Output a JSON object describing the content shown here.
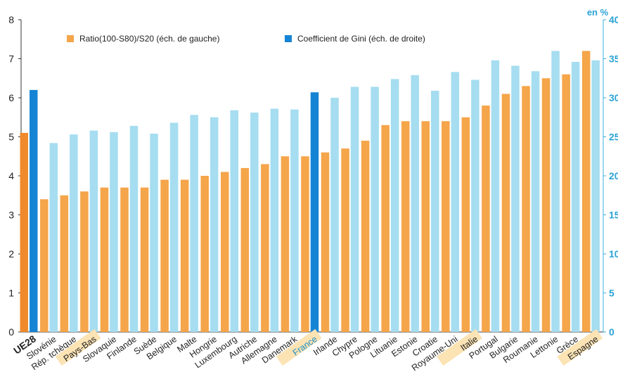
{
  "chart_data": {
    "type": "bar",
    "categories": [
      "UE28",
      "Slovénie",
      "Rép. tchèque",
      "Pays-Bas",
      "Slovaquie",
      "Finlande",
      "Suède",
      "Belgique",
      "Malte",
      "Hongrie",
      "Luxembourg",
      "Autriche",
      "Allemagne",
      "Danemark",
      "France",
      "Irlande",
      "Chypre",
      "Pologne",
      "Lituanie",
      "Estonie",
      "Croatie",
      "Royaume-Uni",
      "Italie",
      "Portugal",
      "Bulgarie",
      "Roumanie",
      "Lettonie",
      "Grèce",
      "Espagne"
    ],
    "highlighted_categories": [
      "UE28",
      "Pays-Bas",
      "France",
      "Italie",
      "Espagne"
    ],
    "series": [
      {
        "name": "Ratio(100-S80)/S20 (éch. de gauche)",
        "axis": "left",
        "color": "#F5A54A",
        "highlight_color": "#F08A2C",
        "values": [
          5.1,
          3.4,
          3.5,
          3.6,
          3.7,
          3.7,
          3.7,
          3.9,
          3.9,
          4.0,
          4.1,
          4.2,
          4.3,
          4.5,
          4.5,
          4.6,
          4.7,
          4.9,
          5.3,
          5.4,
          5.4,
          5.4,
          5.5,
          5.8,
          6.1,
          6.3,
          6.5,
          6.6,
          7.2
        ]
      },
      {
        "name": "Coefficient de Gini (éch. de droite)",
        "axis": "right",
        "color": "#A6DDF0",
        "highlight_color": "#1684D4",
        "values": [
          31.0,
          24.2,
          25.3,
          25.8,
          25.6,
          26.4,
          25.4,
          26.8,
          27.8,
          27.5,
          28.4,
          28.1,
          28.6,
          28.5,
          30.7,
          30.0,
          31.4,
          31.4,
          32.4,
          32.9,
          30.9,
          33.3,
          32.3,
          34.8,
          34.1,
          33.4,
          36.0,
          34.6,
          34.8
        ]
      }
    ],
    "y_left": {
      "min": 0,
      "max": 8,
      "ticks": [
        "0",
        "1",
        "2",
        "3",
        "4",
        "5",
        "6",
        "7",
        "8"
      ]
    },
    "y_right": {
      "min": 0,
      "max": 40,
      "ticks": [
        "0",
        "5",
        "10",
        "15",
        "20",
        "25",
        "30",
        "35",
        "40"
      ],
      "unit": "en %"
    },
    "grid": false,
    "legend_placement": "top-left"
  }
}
